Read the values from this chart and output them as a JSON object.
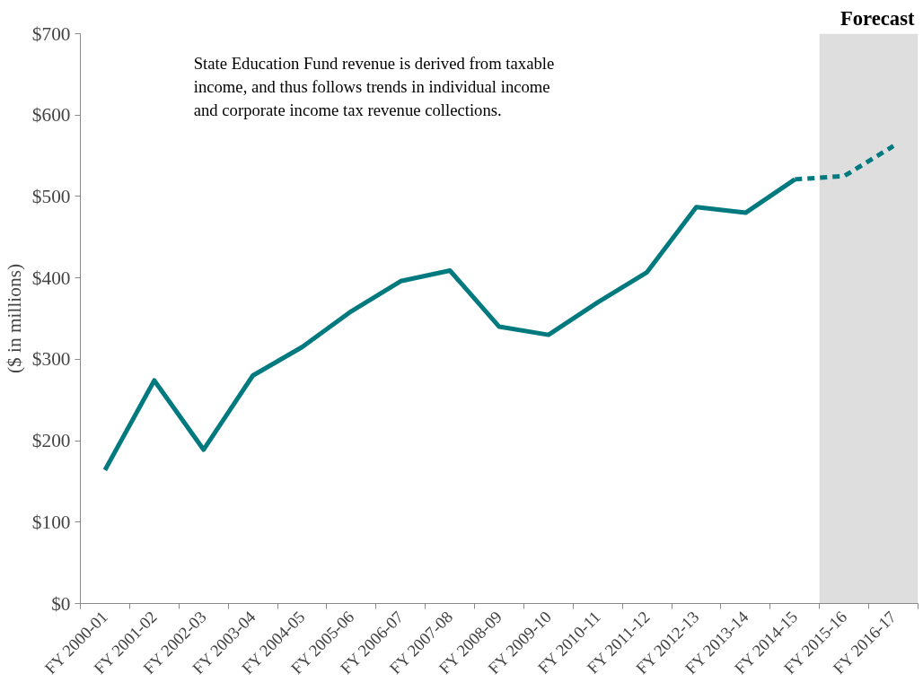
{
  "chart_data": {
    "type": "line",
    "ylabel": "($ in millions)",
    "categories": [
      "FY 2000-01",
      "FY 2001-02",
      "FY 2002-03",
      "FY 2003-04",
      "FY 2004-05",
      "FY 2005-06",
      "FY 2006-07",
      "FY 2007-08",
      "FY 2008-09",
      "FY 2009-10",
      "FY 2010-11",
      "FY 2011-12",
      "FY 2012-13",
      "FY 2013-14",
      "FY 2014-15",
      "FY 2015-16",
      "FY 2016-17"
    ],
    "series": [
      {
        "color": "#007a7f",
        "line_style": "solid",
        "values": [
          164,
          274,
          189,
          280,
          315,
          359,
          396,
          409,
          340,
          330,
          370,
          407,
          487,
          480,
          521,
          null,
          null
        ]
      },
      {
        "color": "#007a7f",
        "line_style": "dashed",
        "values": [
          null,
          null,
          null,
          null,
          null,
          null,
          null,
          null,
          null,
          null,
          null,
          null,
          null,
          null,
          521,
          525,
          562
        ]
      }
    ],
    "ylim": [
      0,
      700
    ],
    "yticks": [
      {
        "value": 0,
        "label": "$0"
      },
      {
        "value": 100,
        "label": "$100"
      },
      {
        "value": 200,
        "label": "$200"
      },
      {
        "value": 300,
        "label": "$300"
      },
      {
        "value": 400,
        "label": "$400"
      },
      {
        "value": 500,
        "label": "$500"
      },
      {
        "value": 600,
        "label": "$600"
      },
      {
        "value": 700,
        "label": "$700"
      }
    ],
    "bands": [
      {
        "axis": "x",
        "from": "FY 2015-16",
        "to": "FY 2016-17",
        "label": "Forecast",
        "color": "#dedede"
      }
    ],
    "annotations": [
      "State Education Fund revenue is derived from taxable\nincome, and thus follows trends in individual income\nand corporate income tax revenue collections."
    ],
    "grid": false,
    "marker": "none"
  }
}
